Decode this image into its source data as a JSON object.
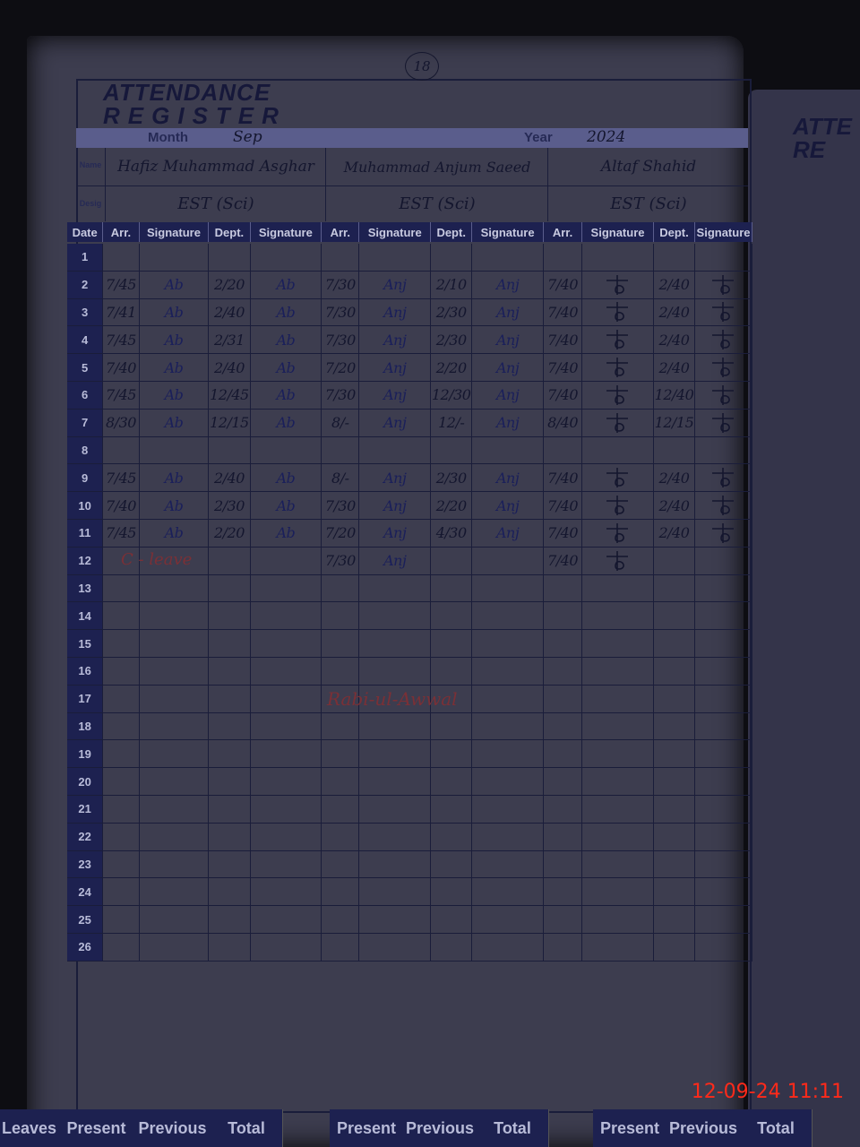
{
  "register": {
    "title_line1": "ATTENDANCE",
    "title_line2": "REGISTER",
    "page_number": "18",
    "month_label": "Month",
    "month_value": "Sep",
    "year_label": "Year",
    "year_value": "2024",
    "name_label": "Name",
    "desig_label": "Desig"
  },
  "staff": [
    {
      "name": "Hafiz Muhammad Asghar",
      "designation": "EST (Sci)",
      "signature": "Ab"
    },
    {
      "name": "Muhammad Anjum Saeed",
      "designation": "EST (Sci)",
      "signature": "Anj"
    },
    {
      "name": "Altaf Shahid",
      "designation": "EST (Sci)",
      "signature": ""
    }
  ],
  "columns": [
    "Date",
    "Arr.",
    "Signature",
    "Dept.",
    "Signature",
    "Arr.",
    "Signature",
    "Dept.",
    "Signature",
    "Arr.",
    "Signature",
    "Dept.",
    "Signature"
  ],
  "rows": [
    {
      "date": "1",
      "t": [
        "",
        "",
        "",
        "",
        "",
        ""
      ]
    },
    {
      "date": "2",
      "t": [
        "7/45",
        "2/20",
        "7/30",
        "2/10",
        "7/40",
        "2/40"
      ]
    },
    {
      "date": "3",
      "t": [
        "7/41",
        "2/40",
        "7/30",
        "2/30",
        "7/40",
        "2/40"
      ]
    },
    {
      "date": "4",
      "t": [
        "7/45",
        "2/31",
        "7/30",
        "2/30",
        "7/40",
        "2/40"
      ]
    },
    {
      "date": "5",
      "t": [
        "7/40",
        "2/40",
        "7/20",
        "2/20",
        "7/40",
        "2/40"
      ]
    },
    {
      "date": "6",
      "t": [
        "7/45",
        "12/45",
        "7/30",
        "12/30",
        "7/40",
        "12/40"
      ]
    },
    {
      "date": "7",
      "t": [
        "8/30",
        "12/15",
        "8/-",
        "12/-",
        "8/40",
        "12/15"
      ]
    },
    {
      "date": "8",
      "t": [
        "",
        "",
        "",
        "",
        "",
        ""
      ]
    },
    {
      "date": "9",
      "t": [
        "7/45",
        "2/40",
        "8/-",
        "2/30",
        "7/40",
        "2/40"
      ]
    },
    {
      "date": "10",
      "t": [
        "7/40",
        "2/30",
        "7/30",
        "2/20",
        "7/40",
        "2/40"
      ]
    },
    {
      "date": "11",
      "t": [
        "7/45",
        "2/20",
        "7/20",
        "4/30",
        "7/40",
        "2/40"
      ]
    },
    {
      "date": "12",
      "t": [
        "",
        "",
        "7/30",
        "",
        "7/40",
        ""
      ]
    },
    {
      "date": "13",
      "t": [
        "",
        "",
        "",
        "",
        "",
        ""
      ]
    },
    {
      "date": "14",
      "t": [
        "",
        "",
        "",
        "",
        "",
        ""
      ]
    },
    {
      "date": "15",
      "t": [
        "",
        "",
        "",
        "",
        "",
        ""
      ]
    },
    {
      "date": "16",
      "t": [
        "",
        "",
        "",
        "",
        "",
        ""
      ]
    },
    {
      "date": "17",
      "t": [
        "",
        "",
        "",
        "",
        "",
        ""
      ]
    },
    {
      "date": "18",
      "t": [
        "",
        "",
        "",
        "",
        "",
        ""
      ]
    },
    {
      "date": "19",
      "t": [
        "",
        "",
        "",
        "",
        "",
        ""
      ]
    },
    {
      "date": "20",
      "t": [
        "",
        "",
        "",
        "",
        "",
        ""
      ]
    },
    {
      "date": "21",
      "t": [
        "",
        "",
        "",
        "",
        "",
        ""
      ]
    },
    {
      "date": "22",
      "t": [
        "",
        "",
        "",
        "",
        "",
        ""
      ]
    },
    {
      "date": "23",
      "t": [
        "",
        "",
        "",
        "",
        "",
        ""
      ]
    },
    {
      "date": "24",
      "t": [
        "",
        "",
        "",
        "",
        "",
        ""
      ]
    },
    {
      "date": "25",
      "t": [
        "",
        "",
        "",
        "",
        "",
        ""
      ]
    },
    {
      "date": "26",
      "t": [
        "",
        "",
        "",
        "",
        "",
        ""
      ]
    }
  ],
  "notes": {
    "leave": "C - leave",
    "holiday": "Rabi-ul-Awwal"
  },
  "footer": [
    "Leaves",
    "Present",
    "Previous",
    "Total",
    "Present",
    "Previous",
    "Total",
    "Present",
    "Previous",
    "Total"
  ],
  "next_page": {
    "title_line1": "ATTE",
    "title_line2": "RE"
  },
  "timestamp": "12-09-24  11:11"
}
